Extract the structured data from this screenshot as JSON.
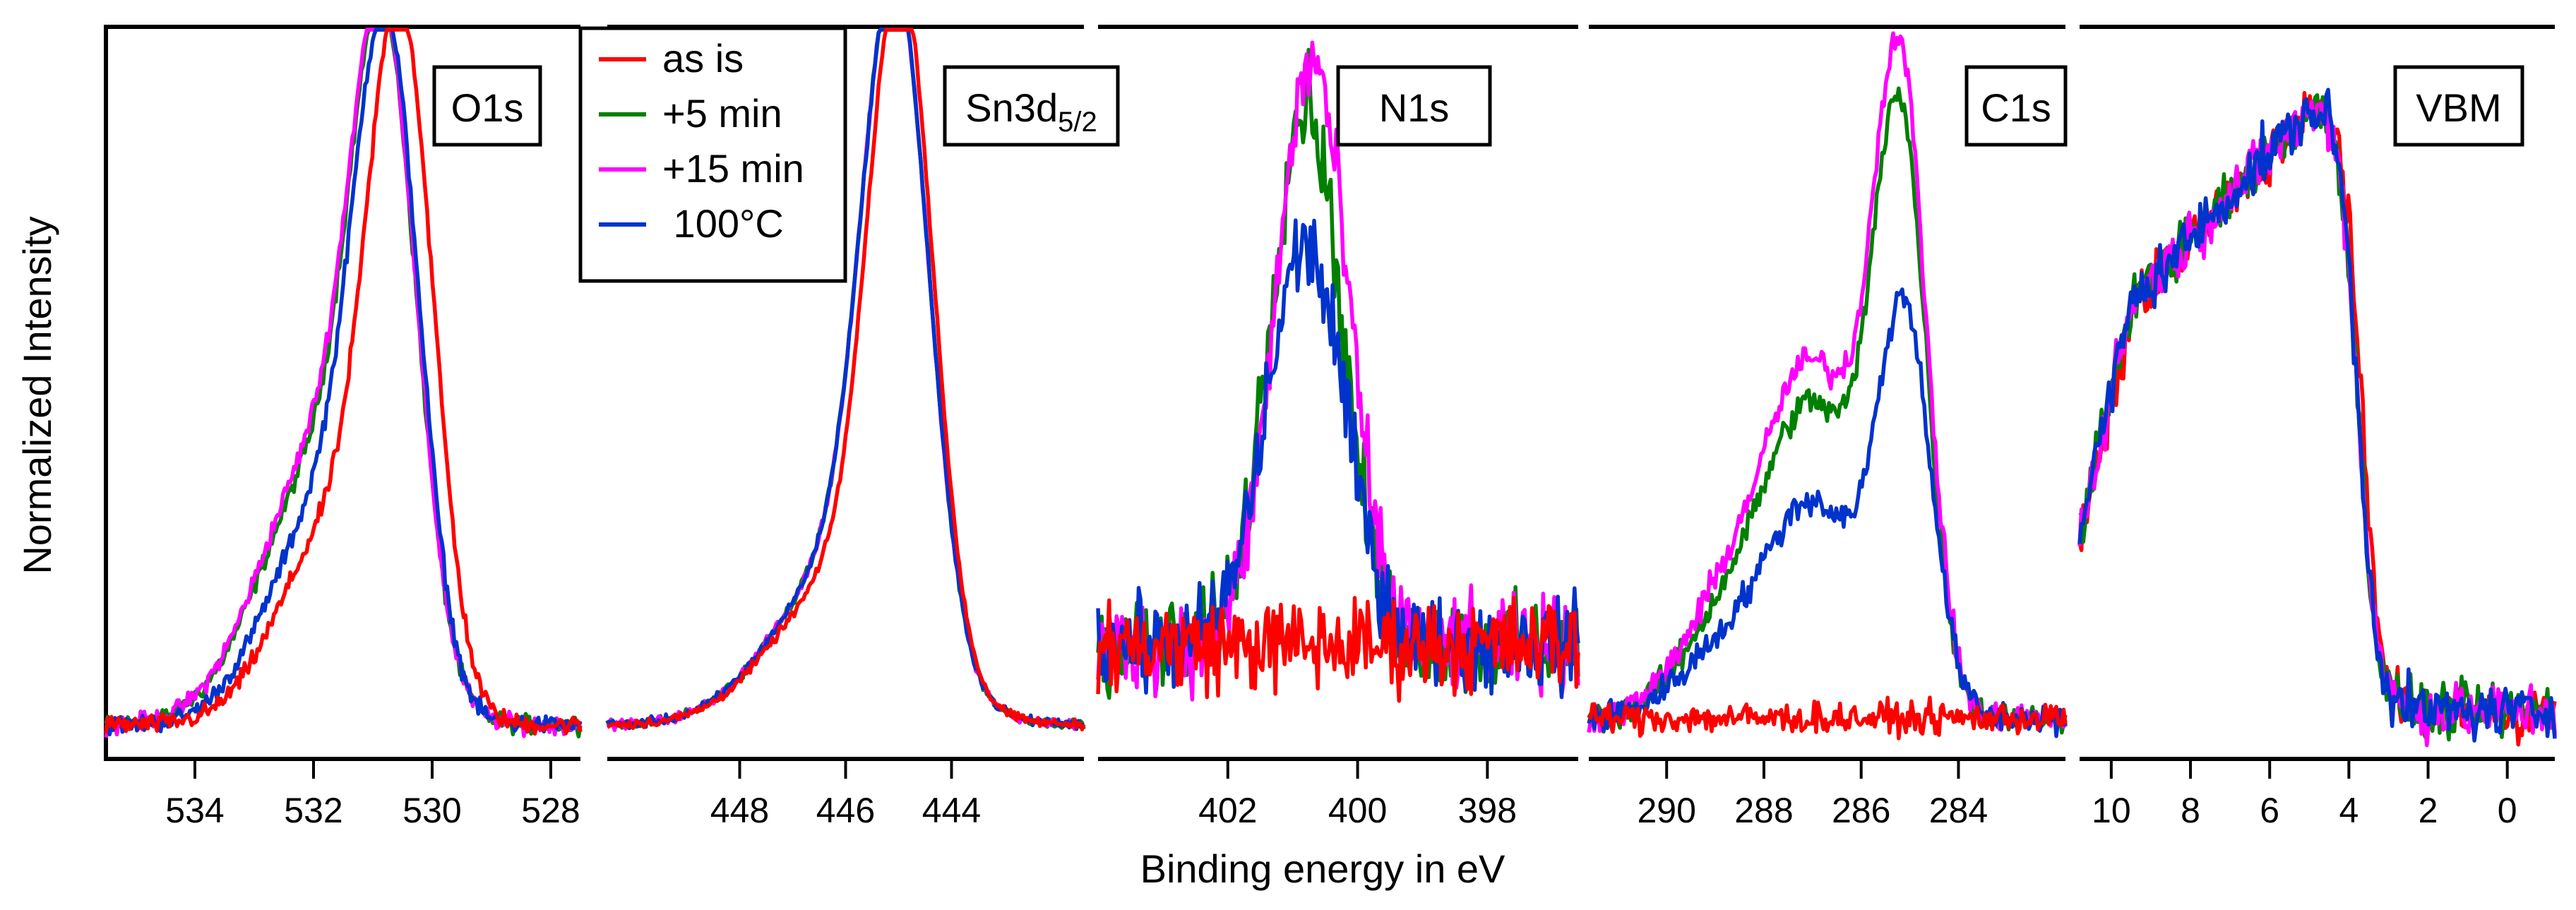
{
  "chart_data": {
    "type": "line",
    "ylabel": "Normalized Intensity",
    "xlabel": "Binding energy in eV",
    "legend": {
      "placement": "top-left",
      "entries": [
        {
          "name": "as is",
          "color": "#ff0000"
        },
        {
          "name": "+5 min",
          "color": "#008000"
        },
        {
          "name": "+15 min",
          "color": "#ff00ff"
        },
        {
          "name": " 100°C",
          "color": "#0033cc"
        }
      ]
    },
    "panels": [
      {
        "id": "o1s",
        "label": "O1s",
        "xlim": [
          535.5,
          527.5
        ],
        "ylim": [
          -0.02,
          1.05
        ],
        "ticks": [
          534,
          532,
          530,
          528
        ],
        "tick_labels": [
          "534",
          "532",
          "530",
          "528"
        ],
        "noise": 0.012,
        "peaks": [
          {
            "series": "as is",
            "components": [
              [
                530.6,
                0.55,
                0.98
              ],
              [
                531.8,
                0.9,
                0.28
              ]
            ],
            "shift": -0.08
          },
          {
            "series": "+5 min",
            "components": [
              [
                530.8,
                0.55,
                0.88
              ],
              [
                531.9,
                1.0,
                0.38
              ]
            ],
            "shift": 0
          },
          {
            "series": "+15 min",
            "components": [
              [
                530.8,
                0.55,
                0.88
              ],
              [
                531.9,
                1.0,
                0.4
              ]
            ],
            "shift": 0
          },
          {
            "series": " 100°C",
            "components": [
              [
                530.75,
                0.55,
                0.9
              ],
              [
                531.8,
                0.95,
                0.32
              ]
            ],
            "shift": 0
          }
        ]
      },
      {
        "id": "sn3d",
        "label": "Sn3d",
        "label_sub": "5/2",
        "xlim": [
          450.5,
          441.5
        ],
        "ylim": [
          -0.02,
          1.05
        ],
        "ticks": [
          448,
          446,
          444
        ],
        "tick_labels": [
          "448",
          "446",
          "444"
        ],
        "noise": 0.006,
        "peaks": [
          {
            "series": "as is",
            "components": [
              [
                444.95,
                0.6,
                0.98
              ],
              [
                446.0,
                1.3,
                0.22
              ]
            ],
            "shift": 0
          },
          {
            "series": "+5 min",
            "components": [
              [
                445.05,
                0.62,
                0.95
              ],
              [
                446.0,
                1.3,
                0.24
              ]
            ],
            "shift": 0
          },
          {
            "series": "+15 min",
            "components": [
              [
                445.05,
                0.62,
                0.95
              ],
              [
                446.0,
                1.3,
                0.24
              ]
            ],
            "shift": 0
          },
          {
            "series": " 100°C",
            "components": [
              [
                445.05,
                0.62,
                0.95
              ],
              [
                446.0,
                1.3,
                0.24
              ]
            ],
            "shift": 0
          }
        ]
      },
      {
        "id": "n1s",
        "label": "N1s",
        "xlim": [
          404.0,
          396.6
        ],
        "ylim": [
          -0.02,
          1.05
        ],
        "ticks": [
          402,
          400,
          398
        ],
        "tick_labels": [
          "402",
          "400",
          "398"
        ],
        "noise": 0.06,
        "baseline": 0.13,
        "peaks": [
          {
            "series": "as is",
            "components": [],
            "shift": 0
          },
          {
            "series": "+5 min",
            "components": [
              [
                400.8,
                0.55,
                0.82
              ]
            ],
            "shift": 0
          },
          {
            "series": "+15 min",
            "components": [
              [
                400.7,
                0.55,
                0.88
              ]
            ],
            "shift": 0
          },
          {
            "series": " 100°C",
            "components": [
              [
                400.8,
                0.6,
                0.6
              ]
            ],
            "shift": 0
          }
        ]
      },
      {
        "id": "c1s",
        "label": "C1s",
        "xlim": [
          291.6,
          281.8
        ],
        "ylim": [
          -0.02,
          1.05
        ],
        "ticks": [
          290,
          288,
          286,
          284
        ],
        "tick_labels": [
          "290",
          "288",
          "286",
          "284"
        ],
        "noise": 0.02,
        "baseline": 0.02,
        "peaks": [
          {
            "series": "as is",
            "components": [],
            "shift": 0
          },
          {
            "series": "+5 min",
            "components": [
              [
                285.2,
                0.55,
                0.85
              ],
              [
                287.0,
                1.0,
                0.46
              ],
              [
                288.9,
                0.9,
                0.12
              ]
            ],
            "shift": 0
          },
          {
            "series": "+15 min",
            "components": [
              [
                285.2,
                0.55,
                0.92
              ],
              [
                287.0,
                1.0,
                0.52
              ],
              [
                288.9,
                0.9,
                0.14
              ]
            ],
            "shift": 0
          },
          {
            "series": " 100°C",
            "components": [
              [
                285.1,
                0.55,
                0.58
              ],
              [
                287.0,
                1.0,
                0.32
              ],
              [
                289.0,
                0.9,
                0.08
              ]
            ],
            "shift": 0
          }
        ]
      },
      {
        "id": "vbm",
        "label": "VBM",
        "xlim": [
          10.8,
          -1.2
        ],
        "ylim": [
          -0.02,
          1.05
        ],
        "ticks": [
          10,
          8,
          6,
          4,
          2,
          0
        ],
        "tick_labels": [
          "10",
          "8",
          "6",
          "4",
          "2",
          "0"
        ],
        "noise": 0.035,
        "shape": "valence"
      }
    ]
  }
}
